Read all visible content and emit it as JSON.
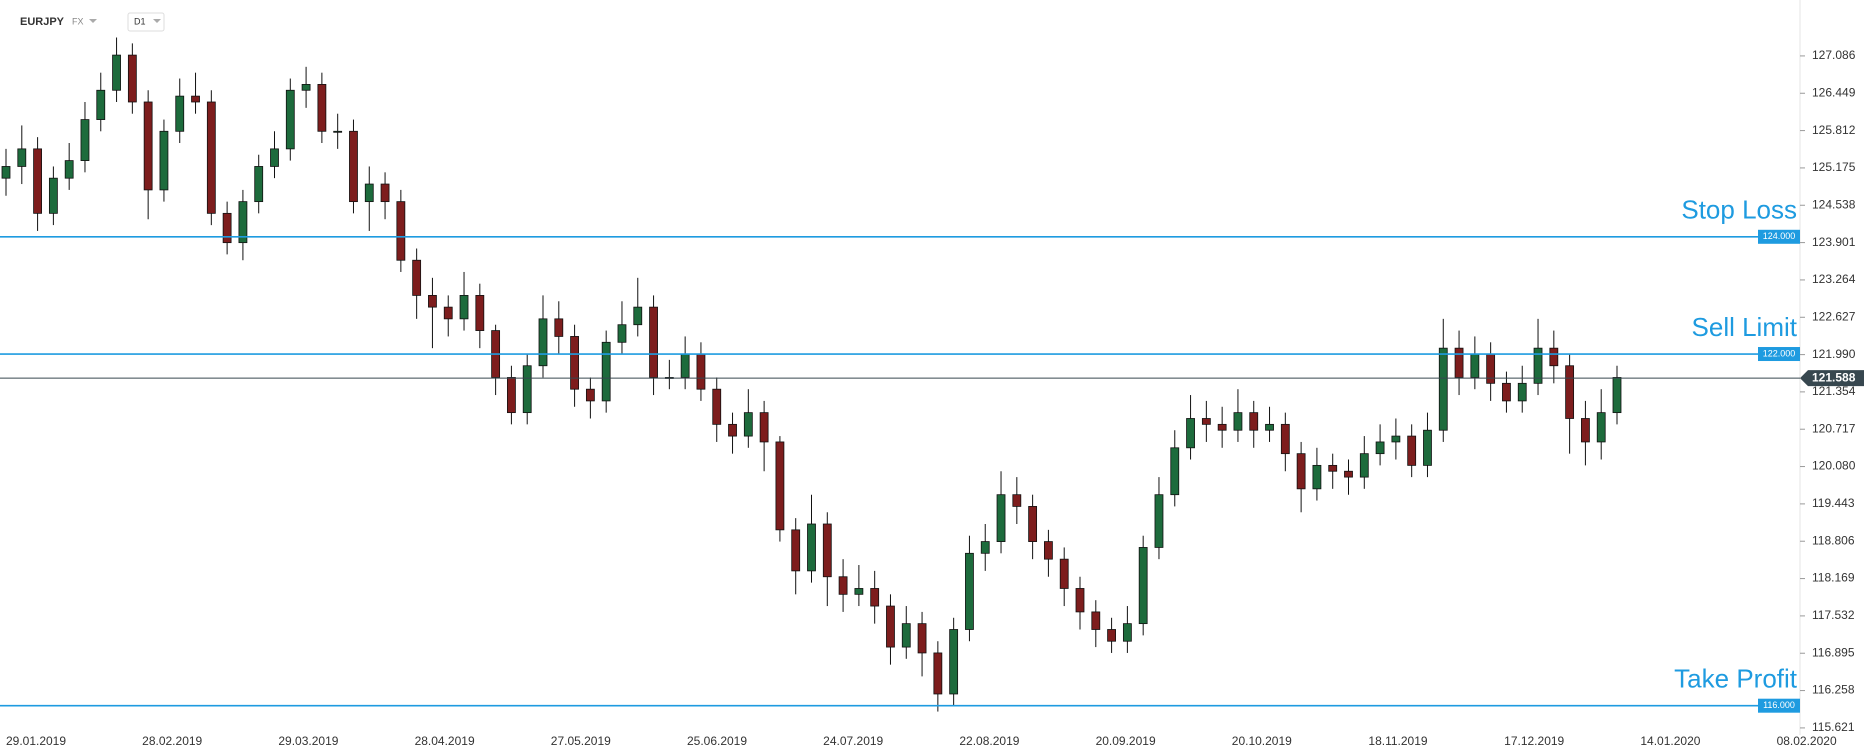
{
  "chart_data": {
    "type": "candlestick",
    "symbol": "EURJPY",
    "market": "FX",
    "timeframe": "D1",
    "x_labels": [
      "29.01.2019",
      "28.02.2019",
      "29.03.2019",
      "28.04.2019",
      "27.05.2019",
      "25.06.2019",
      "24.07.2019",
      "22.08.2019",
      "20.09.2019",
      "20.10.2019",
      "18.11.2019",
      "17.12.2019",
      "14.01.2020",
      "08.02.2020"
    ],
    "open": [
      125.0,
      125.2,
      125.5,
      124.4,
      125.0,
      125.3,
      126.0,
      126.5,
      127.1,
      126.3,
      124.8,
      125.8,
      126.4,
      126.3,
      124.4,
      123.9,
      124.6,
      125.2,
      125.5,
      126.5,
      126.6,
      125.8,
      125.8,
      124.6,
      124.9,
      124.6,
      123.6,
      123.0,
      122.8,
      122.6,
      123.0,
      122.4,
      121.6,
      121.0,
      121.8,
      122.6,
      122.3,
      121.4,
      121.2,
      122.2,
      122.5,
      122.8,
      121.6,
      121.6,
      122.0,
      121.4,
      120.8,
      120.6,
      121.0,
      120.5,
      119.0,
      118.3,
      119.1,
      118.2,
      117.9,
      118.0,
      117.7,
      117.0,
      117.4,
      116.9,
      116.2,
      117.3,
      118.6,
      118.8,
      119.6,
      119.4,
      118.8,
      118.5,
      118.0,
      117.6,
      117.3,
      117.1,
      117.4,
      118.7,
      119.6,
      120.4,
      120.9,
      120.8,
      120.7,
      121.0,
      120.7,
      120.8,
      120.3,
      119.7,
      120.1,
      120.0,
      119.9,
      120.3,
      120.5,
      120.6,
      120.1,
      120.7,
      122.1,
      121.6,
      122.0,
      121.5,
      121.2,
      121.5,
      122.1,
      121.8,
      120.9,
      120.5,
      121.0
    ],
    "high": [
      125.5,
      125.9,
      125.7,
      125.2,
      125.6,
      126.3,
      126.8,
      127.4,
      127.3,
      126.5,
      126.0,
      126.7,
      126.8,
      126.5,
      124.6,
      124.8,
      125.4,
      125.8,
      126.7,
      126.9,
      126.8,
      126.1,
      126.0,
      125.2,
      125.1,
      124.8,
      123.8,
      123.3,
      123.0,
      123.4,
      123.2,
      122.5,
      121.8,
      122.0,
      123.0,
      122.9,
      122.5,
      121.6,
      122.4,
      122.9,
      123.3,
      123.0,
      121.9,
      122.3,
      122.2,
      121.6,
      121.0,
      121.4,
      121.2,
      120.6,
      119.2,
      119.6,
      119.3,
      118.5,
      118.4,
      118.3,
      117.9,
      117.7,
      117.6,
      117.1,
      117.5,
      118.9,
      119.1,
      120.0,
      119.9,
      119.6,
      119.0,
      118.7,
      118.2,
      117.8,
      117.5,
      117.7,
      118.9,
      119.9,
      120.7,
      121.3,
      121.2,
      121.1,
      121.4,
      121.2,
      121.1,
      121.0,
      120.5,
      120.4,
      120.3,
      120.2,
      120.6,
      120.8,
      120.9,
      120.8,
      121.0,
      122.6,
      122.4,
      122.3,
      122.2,
      121.7,
      121.8,
      122.6,
      122.4,
      122.0,
      121.2,
      121.4,
      121.8
    ],
    "low": [
      124.7,
      124.9,
      124.1,
      124.2,
      124.8,
      125.1,
      125.8,
      126.3,
      126.1,
      124.3,
      124.6,
      125.6,
      126.1,
      124.2,
      123.7,
      123.6,
      124.4,
      125.0,
      125.3,
      126.2,
      125.6,
      125.5,
      124.4,
      124.1,
      124.3,
      123.4,
      122.6,
      122.1,
      122.3,
      122.4,
      122.1,
      121.3,
      120.8,
      120.8,
      121.6,
      122.0,
      121.1,
      120.9,
      121.0,
      122.0,
      122.3,
      121.3,
      121.4,
      121.4,
      121.2,
      120.5,
      120.3,
      120.4,
      120.0,
      118.8,
      117.9,
      118.1,
      117.7,
      117.6,
      117.7,
      117.4,
      116.7,
      116.8,
      116.5,
      115.9,
      116.0,
      117.1,
      118.3,
      118.6,
      119.1,
      118.5,
      118.2,
      117.7,
      117.3,
      117.0,
      116.9,
      116.9,
      117.2,
      118.5,
      119.4,
      120.2,
      120.5,
      120.4,
      120.5,
      120.4,
      120.5,
      120.0,
      119.3,
      119.5,
      119.7,
      119.6,
      119.7,
      120.1,
      120.2,
      119.9,
      119.9,
      120.5,
      121.3,
      121.4,
      121.2,
      121.0,
      121.0,
      121.3,
      121.5,
      120.3,
      120.1,
      120.2,
      120.8
    ],
    "close": [
      125.2,
      125.5,
      124.4,
      125.0,
      125.3,
      126.0,
      126.5,
      127.1,
      126.3,
      124.8,
      125.8,
      126.4,
      126.3,
      124.4,
      123.9,
      124.6,
      125.2,
      125.5,
      126.5,
      126.6,
      125.8,
      125.8,
      124.6,
      124.9,
      124.6,
      123.6,
      123.0,
      122.8,
      122.6,
      123.0,
      122.4,
      121.6,
      121.0,
      121.8,
      122.6,
      122.3,
      121.4,
      121.2,
      122.2,
      122.5,
      122.8,
      121.6,
      121.6,
      122.0,
      121.4,
      120.8,
      120.6,
      121.0,
      120.5,
      119.0,
      118.3,
      119.1,
      118.2,
      117.9,
      118.0,
      117.7,
      117.0,
      117.4,
      116.9,
      116.2,
      117.3,
      118.6,
      118.8,
      119.6,
      119.4,
      118.8,
      118.5,
      118.0,
      117.6,
      117.3,
      117.1,
      117.4,
      118.7,
      119.6,
      120.4,
      120.9,
      120.8,
      120.7,
      121.0,
      120.7,
      120.8,
      120.3,
      119.7,
      120.1,
      120.0,
      119.9,
      120.3,
      120.5,
      120.6,
      120.1,
      120.7,
      122.1,
      121.6,
      122.0,
      121.5,
      121.2,
      121.5,
      122.1,
      121.8,
      120.9,
      120.5,
      121.0,
      121.6
    ],
    "up_color": "#1d6b3c",
    "down_color": "#7d1d1d",
    "ylim": [
      115.5,
      128.04
    ],
    "yticks": [
      127.086,
      126.449,
      125.812,
      125.175,
      124.538,
      {
        "value": 123.901,
        "label": "123.901"
      },
      123.264,
      122.627,
      {
        "value": 121.99,
        "label": "121.990"
      },
      121.354,
      120.717,
      {
        "value": 120.08,
        "label": "120.080"
      },
      119.443,
      118.806,
      118.169,
      117.532,
      116.895,
      116.258,
      115.621
    ],
    "current_price": 121.588,
    "current_color": "#37474f",
    "orders": [
      {
        "name": "Stop Loss",
        "price": {
          "value": 124,
          "label": "124.000"
        }
      },
      {
        "name": "Sell Limit",
        "price": {
          "value": 122,
          "label": "122.000"
        }
      },
      {
        "name": "Take Profit",
        "price": {
          "value": 116,
          "label": "116.000"
        }
      }
    ],
    "order_color": "#1e9be0"
  }
}
